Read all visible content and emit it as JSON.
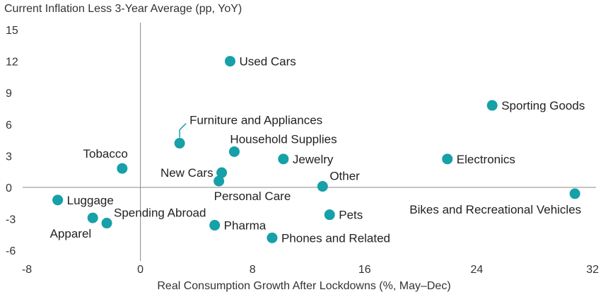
{
  "chart_data": {
    "type": "scatter",
    "title": "",
    "ylabel": "Current Inflation Less 3-Year Average (pp, YoY)",
    "xlabel": "Real Consumption Growth After Lockdowns (%, May–Dec)",
    "xlim": [
      -8,
      32
    ],
    "ylim": [
      -7,
      16
    ],
    "xticks": [
      -8,
      0,
      8,
      16,
      24,
      32
    ],
    "yticks": [
      -6,
      -3,
      0,
      3,
      6,
      9,
      12,
      15
    ],
    "grid": false,
    "marker_color": "#16a0a8",
    "axis_color": "#888888",
    "points": [
      {
        "label": "Used Cars",
        "x": 6.4,
        "y": 12.0,
        "anchor": "right"
      },
      {
        "label": "Sporting Goods",
        "x": 25.1,
        "y": 7.8,
        "anchor": "right"
      },
      {
        "label": "Furniture and Appliances",
        "x": 2.8,
        "y": 4.2,
        "anchor": "leader"
      },
      {
        "label": "Household Supplies",
        "x": 6.7,
        "y": 3.4,
        "anchor": "above"
      },
      {
        "label": "Jewelry",
        "x": 10.2,
        "y": 2.7,
        "anchor": "right"
      },
      {
        "label": "Electronics",
        "x": 21.9,
        "y": 2.7,
        "anchor": "right"
      },
      {
        "label": "Tobacco",
        "x": -1.3,
        "y": 1.8,
        "anchor": "above-left"
      },
      {
        "label": "New Cars",
        "x": 5.8,
        "y": 1.4,
        "anchor": "left"
      },
      {
        "label": "Personal Care",
        "x": 5.6,
        "y": 0.6,
        "anchor": "below"
      },
      {
        "label": "Other",
        "x": 13.0,
        "y": 0.1,
        "anchor": "above-right"
      },
      {
        "label": "Bikes and Recreational Vehicles",
        "x": 31.0,
        "y": -0.6,
        "anchor": "below-left"
      },
      {
        "label": "Luggage",
        "x": -5.9,
        "y": -1.2,
        "anchor": "right"
      },
      {
        "label": "Apparel",
        "x": -3.4,
        "y": -2.9,
        "anchor": "below-left"
      },
      {
        "label": "Spending Abroad",
        "x": -2.4,
        "y": -3.4,
        "anchor": "above-right"
      },
      {
        "label": "Pets",
        "x": 13.5,
        "y": -2.6,
        "anchor": "right"
      },
      {
        "label": "Pharma",
        "x": 5.3,
        "y": -3.6,
        "anchor": "right"
      },
      {
        "label": "Phones and Related",
        "x": 9.4,
        "y": -4.8,
        "anchor": "right"
      }
    ]
  }
}
